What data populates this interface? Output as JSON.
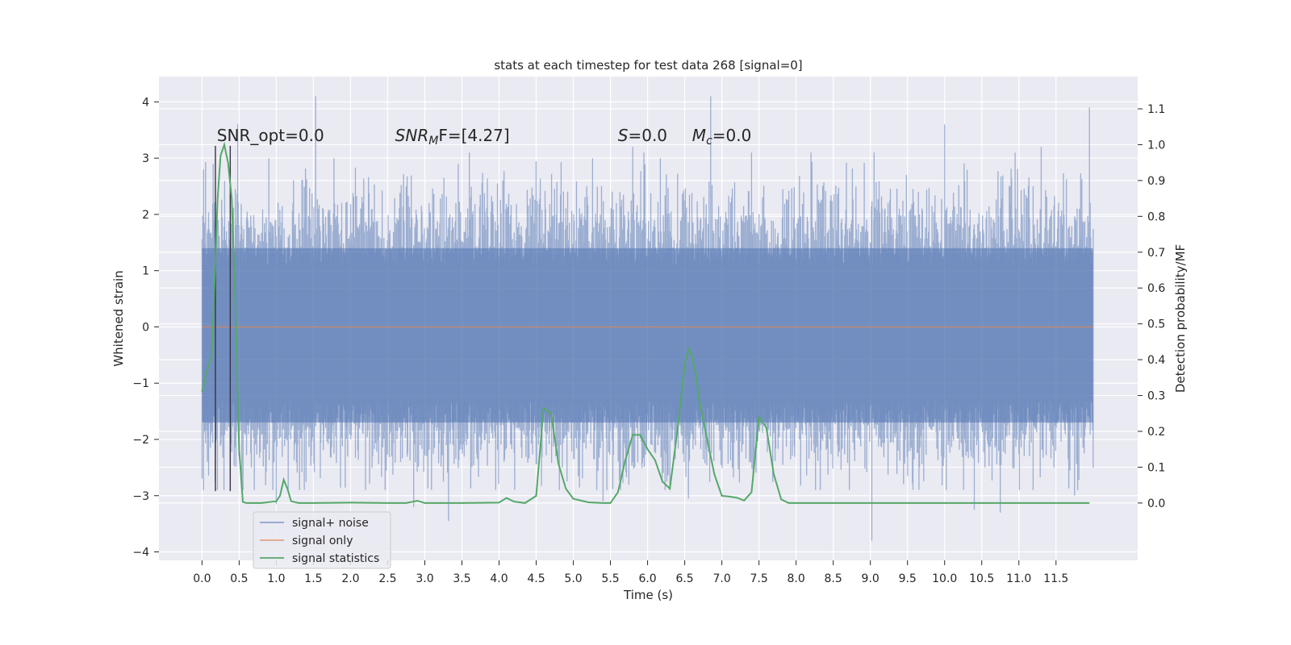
{
  "chart_data": {
    "type": "line",
    "title": "stats at each timestep for test data 268 [signal=0]",
    "xlabel": "Time (s)",
    "ylabel_left": "Whitened strain",
    "ylabel_right": "Detection probability/MF",
    "xlim": [
      -0.58,
      12.6
    ],
    "ylim_left": [
      -4.15,
      4.45
    ],
    "ylim_right": [
      -0.16,
      1.19
    ],
    "x_ticks": [
      "0.0",
      "0.5",
      "1.0",
      "1.5",
      "2.0",
      "2.5",
      "3.0",
      "3.5",
      "4.0",
      "4.5",
      "5.0",
      "5.5",
      "6.0",
      "6.5",
      "7.0",
      "7.5",
      "8.0",
      "8.5",
      "9.0",
      "9.5",
      "10.0",
      "10.5",
      "11.0",
      "11.5"
    ],
    "y_ticks_left": [
      -4,
      -3,
      -2,
      -1,
      0,
      1,
      2,
      3,
      4
    ],
    "y_ticks_right": [
      "0.0",
      "0.1",
      "0.2",
      "0.3",
      "0.4",
      "0.5",
      "0.6",
      "0.7",
      "0.8",
      "0.9",
      "1.0",
      "1.1"
    ],
    "grid": true,
    "legend_position": "lower-left",
    "annotations": [
      {
        "text": "SNR_opt=0.0",
        "x": 0.2,
        "y": 3.3
      },
      {
        "text": "SNR",
        "sub": "M",
        "after": "F=[4.27]",
        "x": 2.6,
        "y": 3.3
      },
      {
        "text": "S",
        "after": "=0.0",
        "x": 5.6,
        "y": 3.3
      },
      {
        "text": "M",
        "sub": "c",
        "after": "=0.0",
        "x": 6.6,
        "y": 3.3
      }
    ],
    "vlines": [
      {
        "x": 0.18,
        "ymin": -2.92,
        "ymax": 3.22
      },
      {
        "x": 0.38,
        "ymin": -2.92,
        "ymax": 3.22
      }
    ],
    "series": [
      {
        "name": "signal+ noise",
        "color": "#4c72b0",
        "axis": "left",
        "x_start": 0.0,
        "x_end": 12.0,
        "core_range": [
          -1.7,
          1.4
        ],
        "upper_peaks": [
          {
            "x": 0.02,
            "y": 2.8
          },
          {
            "x": 0.15,
            "y": 2.9
          },
          {
            "x": 0.48,
            "y": 3.6
          },
          {
            "x": 0.9,
            "y": 3.0
          },
          {
            "x": 1.53,
            "y": 4.1
          },
          {
            "x": 2.75,
            "y": 2.5
          },
          {
            "x": 3.45,
            "y": 2.9
          },
          {
            "x": 3.6,
            "y": 3.1
          },
          {
            "x": 5.8,
            "y": 3.2
          },
          {
            "x": 5.95,
            "y": 3.1
          },
          {
            "x": 6.85,
            "y": 4.1
          },
          {
            "x": 7.4,
            "y": 3.1
          },
          {
            "x": 8.2,
            "y": 3.1
          },
          {
            "x": 9.05,
            "y": 3.1
          },
          {
            "x": 10.0,
            "y": 3.6
          },
          {
            "x": 10.95,
            "y": 3.1
          },
          {
            "x": 11.3,
            "y": 3.2
          },
          {
            "x": 11.95,
            "y": 3.9
          }
        ],
        "lower_peaks": [
          {
            "x": 0.02,
            "y": -2.9
          },
          {
            "x": 1.0,
            "y": -3.15
          },
          {
            "x": 2.85,
            "y": -3.2
          },
          {
            "x": 3.32,
            "y": -3.45
          },
          {
            "x": 5.4,
            "y": -3.1
          },
          {
            "x": 6.55,
            "y": -3.05
          },
          {
            "x": 9.02,
            "y": -3.8
          },
          {
            "x": 10.4,
            "y": -3.25
          },
          {
            "x": 10.75,
            "y": -3.3
          },
          {
            "x": 11.75,
            "y": -3.0
          },
          {
            "x": 12.0,
            "y": -2.5
          }
        ]
      },
      {
        "name": "signal only",
        "color": "#dd8452",
        "axis": "left",
        "x": [
          0.0,
          12.0
        ],
        "y": [
          0.0,
          0.0
        ]
      },
      {
        "name": "signal statistics",
        "color": "#55a868",
        "axis": "right",
        "x": [
          0.0,
          0.08,
          0.13,
          0.17,
          0.21,
          0.25,
          0.3,
          0.35,
          0.4,
          0.45,
          0.5,
          0.55,
          0.6,
          0.8,
          1.0,
          1.05,
          1.1,
          1.15,
          1.2,
          1.3,
          1.5,
          2.0,
          2.5,
          2.75,
          2.9,
          3.0,
          3.5,
          4.0,
          4.1,
          4.2,
          4.35,
          4.5,
          4.6,
          4.7,
          4.8,
          4.9,
          5.0,
          5.2,
          5.4,
          5.5,
          5.6,
          5.7,
          5.8,
          5.9,
          6.0,
          6.1,
          6.2,
          6.3,
          6.4,
          6.5,
          6.55,
          6.6,
          6.65,
          6.7,
          6.8,
          6.9,
          7.0,
          7.1,
          7.2,
          7.3,
          7.4,
          7.5,
          7.6,
          7.7,
          7.8,
          7.9,
          8.0,
          8.5,
          9.0,
          9.5,
          10.0,
          10.5,
          11.0,
          11.5,
          11.95
        ],
        "y": [
          0.31,
          0.38,
          0.41,
          0.62,
          0.85,
          0.97,
          1.0,
          0.95,
          0.85,
          0.55,
          0.15,
          0.003,
          0.0,
          0.0,
          0.005,
          0.02,
          0.065,
          0.04,
          0.005,
          0.0,
          0.0,
          0.001,
          0.0,
          0.0,
          0.006,
          0.0,
          0.0,
          0.001,
          0.014,
          0.004,
          0.0,
          0.02,
          0.265,
          0.25,
          0.11,
          0.04,
          0.012,
          0.002,
          0.0,
          0.0,
          0.03,
          0.12,
          0.19,
          0.19,
          0.15,
          0.12,
          0.06,
          0.04,
          0.2,
          0.385,
          0.43,
          0.41,
          0.36,
          0.28,
          0.18,
          0.08,
          0.02,
          0.018,
          0.015,
          0.007,
          0.03,
          0.24,
          0.21,
          0.08,
          0.01,
          0.0,
          0.0,
          0.0,
          0.0,
          0.0,
          0.0,
          0.0,
          0.0,
          0.0,
          0.0
        ]
      }
    ]
  }
}
